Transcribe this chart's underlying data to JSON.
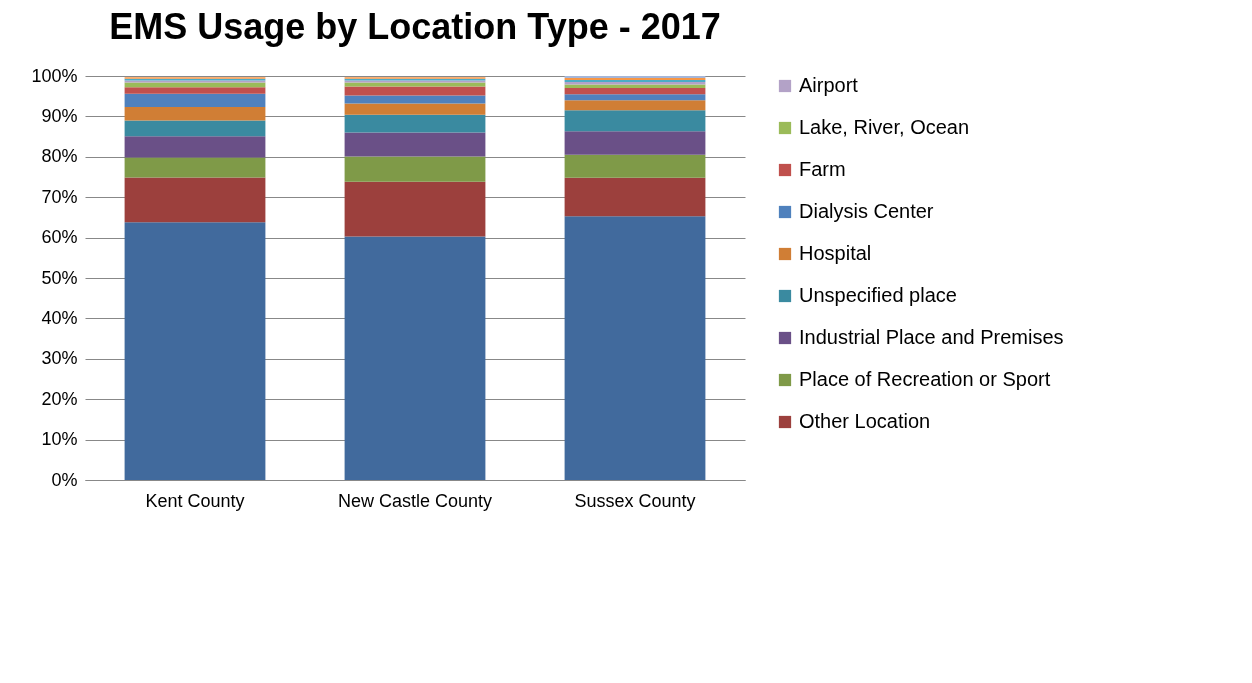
{
  "chart_data": {
    "type": "bar",
    "title": "EMS Usage by Location Type - 2017",
    "categories": [
      "Kent County",
      "New Castle County",
      "Sussex County"
    ],
    "stacked": true,
    "legend": "right",
    "grid": "y",
    "ylim": [
      0,
      100
    ],
    "yticks": [
      {
        "value": 0,
        "label": "0%"
      },
      {
        "value": 10,
        "label": "10%"
      },
      {
        "value": 20,
        "label": "20%"
      },
      {
        "value": 30,
        "label": "30%"
      },
      {
        "value": 40,
        "label": "40%"
      },
      {
        "value": 50,
        "label": "50%"
      },
      {
        "value": 60,
        "label": "60%"
      },
      {
        "value": 70,
        "label": "70%"
      },
      {
        "value": 80,
        "label": "80%"
      },
      {
        "value": 90,
        "label": "90%"
      },
      {
        "value": 100,
        "label": "100%"
      }
    ],
    "series": [
      {
        "color": "#416a9d",
        "values": [
          63.8,
          60.3,
          65.3
        ]
      },
      {
        "name": "Other Location",
        "color": "#9c403d",
        "values": [
          11.1,
          13.5,
          9.5
        ]
      },
      {
        "name": "Place of Recreation or Sport",
        "color": "#7f9a48",
        "values": [
          4.9,
          6.3,
          5.7
        ]
      },
      {
        "name": "Industrial Place and Premises",
        "color": "#6a5087",
        "values": [
          5.3,
          5.9,
          5.8
        ]
      },
      {
        "name": "Unspecified place",
        "color": "#3a8aa0",
        "values": [
          3.9,
          4.4,
          5.2
        ]
      },
      {
        "name": "Hospital",
        "color": "#d07e35",
        "values": [
          3.3,
          2.8,
          2.5
        ]
      },
      {
        "name": "Dialysis Center",
        "color": "#4f81bd",
        "values": [
          3.3,
          2.0,
          1.5
        ]
      },
      {
        "name": "Farm",
        "color": "#c0504d",
        "values": [
          1.6,
          2.2,
          1.5
        ]
      },
      {
        "name": "Lake, River, Ocean",
        "color": "#9bbb59",
        "values": [
          1.2,
          1.0,
          0.9
        ]
      },
      {
        "name": "Airport",
        "color": "#b3a2c7",
        "values": [
          0.5,
          0.5,
          0.6
        ]
      },
      {
        "color": "#4bacc6",
        "values": [
          0.4,
          0.4,
          0.5
        ]
      },
      {
        "color": "#f79646",
        "values": [
          0.4,
          0.4,
          0.5
        ]
      },
      {
        "color": "#a5b6d8",
        "values": [
          null,
          null,
          0.5
        ]
      }
    ]
  }
}
